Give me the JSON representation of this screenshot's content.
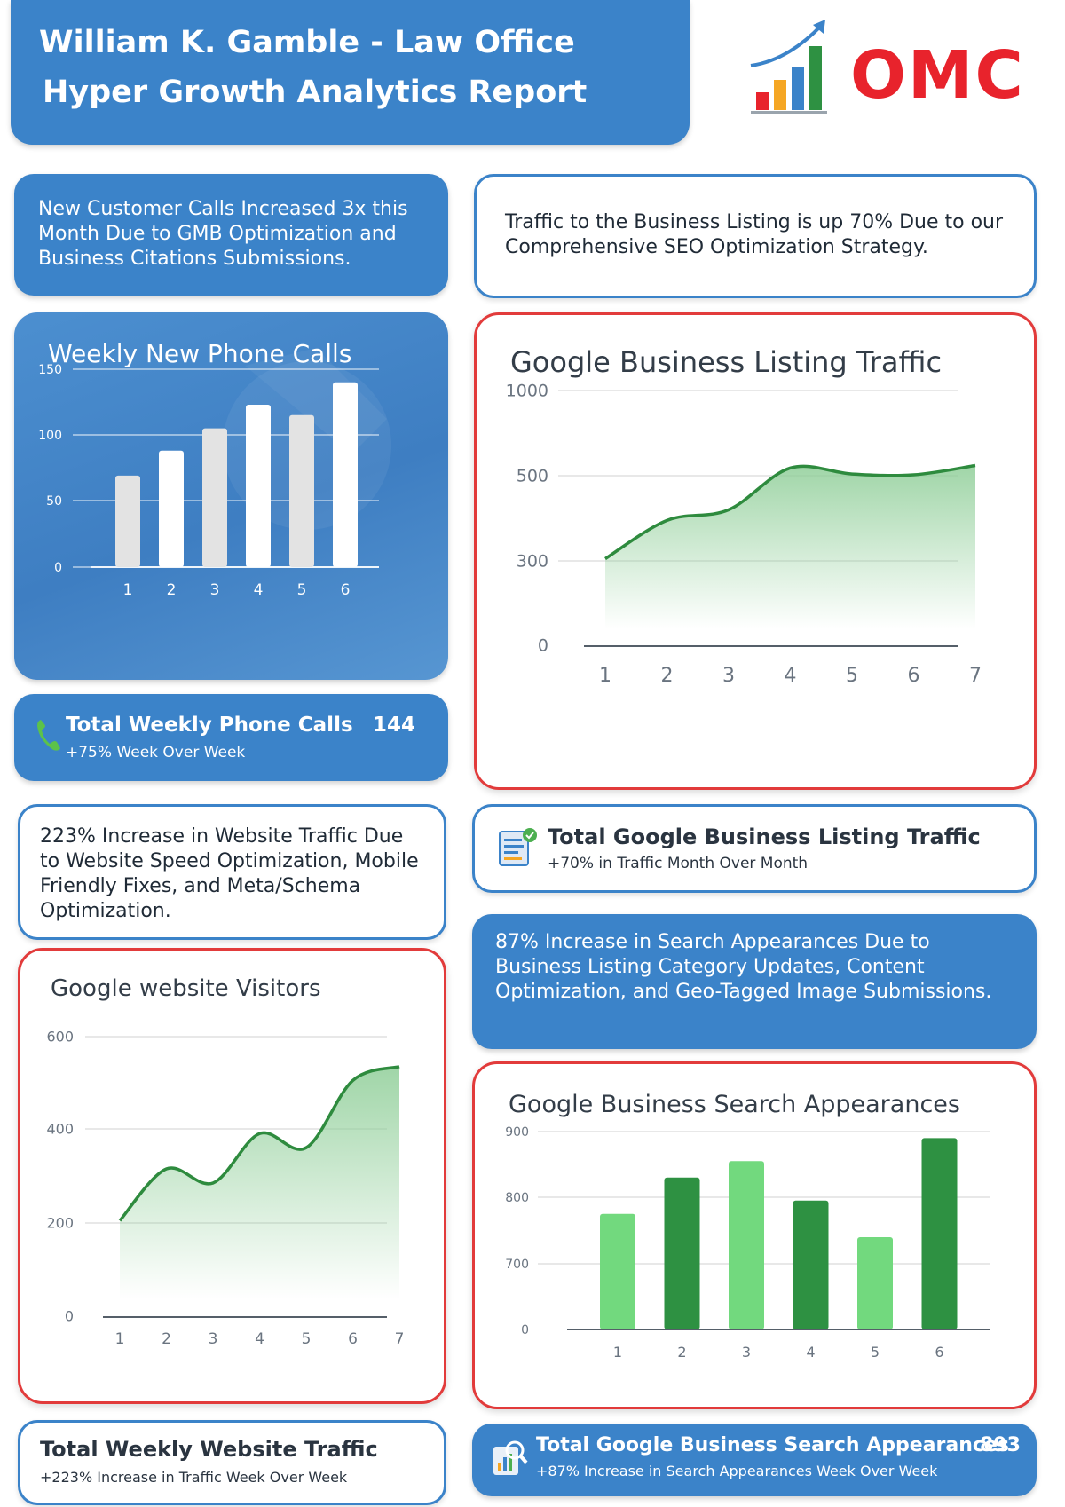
{
  "header": {
    "line1": "William K. Gamble - Law Office",
    "line2": "Hyper Growth Analytics Report"
  },
  "logo": {
    "text": "OMC"
  },
  "colors": {
    "blue": "#3b83c9",
    "red_border": "#e23b3b",
    "green_line": "#2e8b3e",
    "green_light": "#72d97e",
    "green_dark": "#2e9142"
  },
  "calls_desc": "New Customer Calls Increased 3x this Month Due to GMB Optimization and Business Citations Submissions.",
  "listing_desc": "Traffic to the Business Listing is up 70% Due to our Comprehensive SEO Optimization Strategy.",
  "website_desc": "223% Increase in Website Traffic Due to Website Speed Optimization, Mobile Friendly Fixes, and Meta/Schema Optimization.",
  "search_desc": "87% Increase in Search Appearances Due to Business Listing Category Updates, Content Optimization, and Geo-Tagged Image Submissions.",
  "phone_total": {
    "icon": "phone-icon",
    "label": "Total Weekly Phone Calls",
    "value": "144",
    "sub": "+75% Week Over Week"
  },
  "listing_total": {
    "icon": "listing-report-icon",
    "label": "Total Google Business Listing Traffic",
    "sub": "+70% in Traffic Month Over Month"
  },
  "website_total": {
    "label": "Total Weekly Website Traffic",
    "sub": "+223% Increase in Traffic Week Over Week"
  },
  "search_total": {
    "icon": "search-report-icon",
    "label": "Total Google Business Search Appearances",
    "value": "893",
    "sub": "+87% Increase in Search Appearances Week Over Week"
  },
  "chart_data": [
    {
      "id": "phone",
      "type": "bar",
      "title": "Weekly New Phone Calls",
      "categories": [
        "1",
        "2",
        "3",
        "4",
        "5",
        "6"
      ],
      "values": [
        69,
        88,
        105,
        123,
        115,
        140
      ],
      "yticks": [
        "0",
        "50",
        "100",
        "150"
      ],
      "ylim": [
        0,
        150
      ],
      "grid": true
    },
    {
      "id": "listing",
      "type": "area",
      "title": "Google Business Listing Traffic",
      "x": [
        "1",
        "2",
        "3",
        "4",
        "5",
        "6",
        "7"
      ],
      "values": [
        305,
        395,
        420,
        545,
        510,
        505,
        560
      ],
      "yticks": [
        "0",
        "300",
        "500",
        "1000"
      ],
      "grid": true
    },
    {
      "id": "website",
      "type": "area",
      "title": "Google website Visitors",
      "x": [
        "1",
        "2",
        "3",
        "4",
        "5",
        "6",
        "7"
      ],
      "values": [
        205,
        315,
        285,
        390,
        360,
        505,
        535
      ],
      "yticks": [
        "0",
        "200",
        "400",
        "600"
      ],
      "ylim": [
        0,
        600
      ],
      "grid": true
    },
    {
      "id": "search",
      "type": "bar",
      "title": "Google Business Search Appearances",
      "categories": [
        "1",
        "2",
        "3",
        "4",
        "5",
        "6"
      ],
      "values": [
        775,
        830,
        855,
        795,
        740,
        890
      ],
      "yticks": [
        "0",
        "700",
        "800",
        "900"
      ],
      "grid": true
    }
  ]
}
